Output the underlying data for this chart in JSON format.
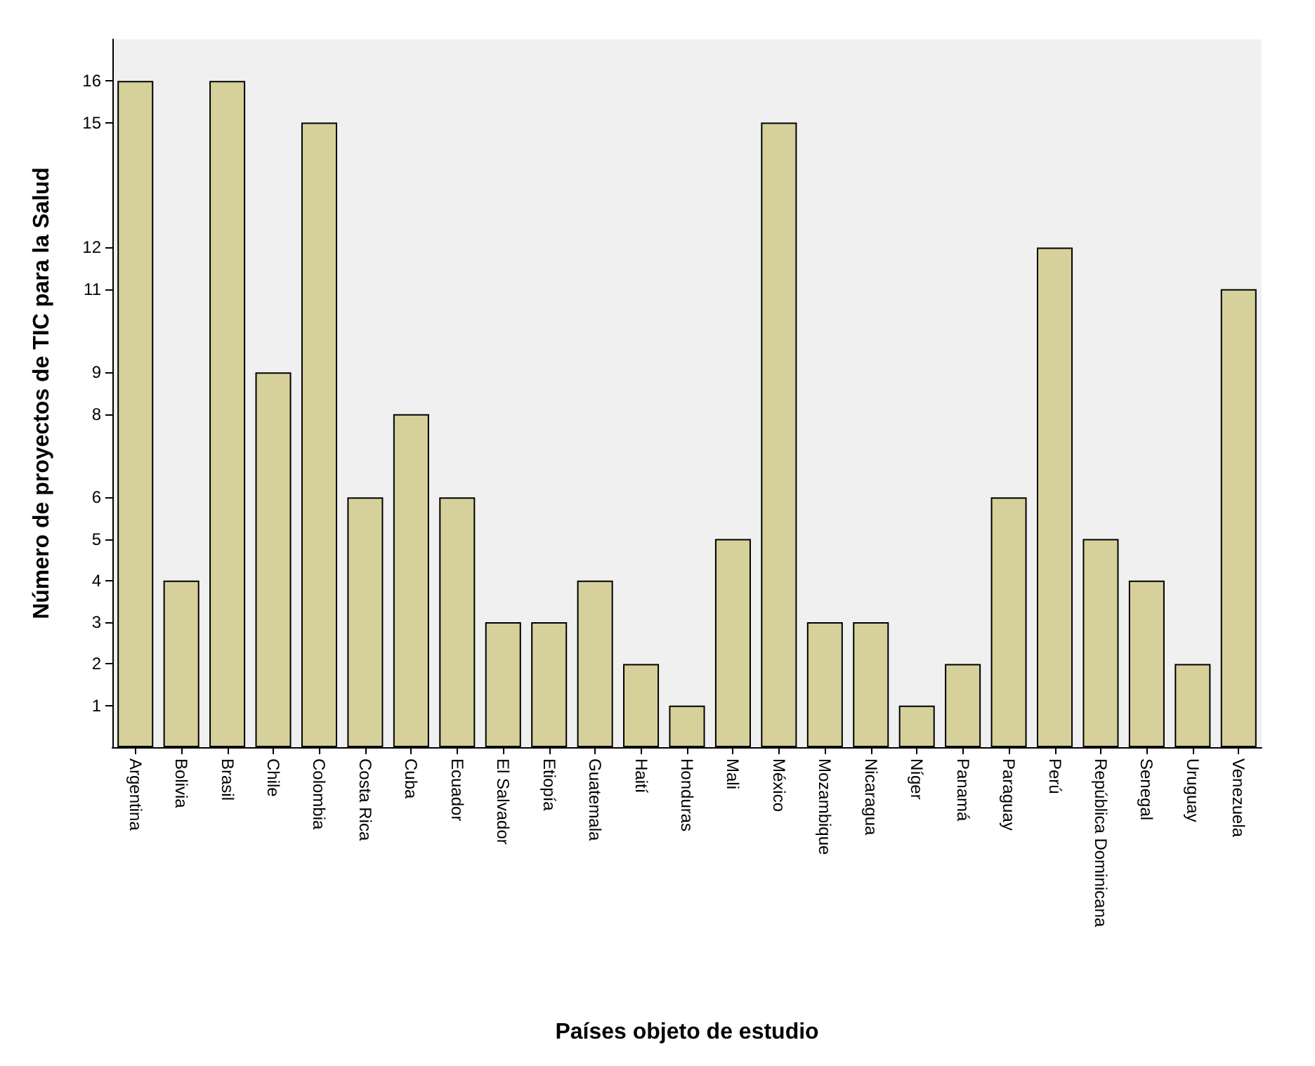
{
  "chart_data": {
    "type": "bar",
    "xlabel": "Países objeto de estudio",
    "ylabel": "Número de proyectos de TIC para la Salud",
    "categories": [
      "Argentina",
      "Bolivia",
      "Brasil",
      "Chile",
      "Colombia",
      "Costa Rica",
      "Cuba",
      "Ecuador",
      "El Salvador",
      "Etiopía",
      "Guatemala",
      "Haití",
      "Honduras",
      "Mali",
      "México",
      "Mozambique",
      "Nicaragua",
      "Níger",
      "Panamá",
      "Paraguay",
      "Perú",
      "República Dominicana",
      "Senegal",
      "Uruguay",
      "Venezuela"
    ],
    "values": [
      16,
      4,
      16,
      9,
      15,
      6,
      8,
      6,
      3,
      3,
      4,
      2,
      1,
      5,
      15,
      3,
      3,
      1,
      2,
      6,
      12,
      5,
      4,
      2,
      11
    ],
    "color": "#d6d09b",
    "ylim": [
      0,
      17
    ],
    "yticks": [
      1,
      2,
      3,
      4,
      5,
      6,
      8,
      9,
      11,
      12,
      15,
      16
    ],
    "grid": false
  }
}
